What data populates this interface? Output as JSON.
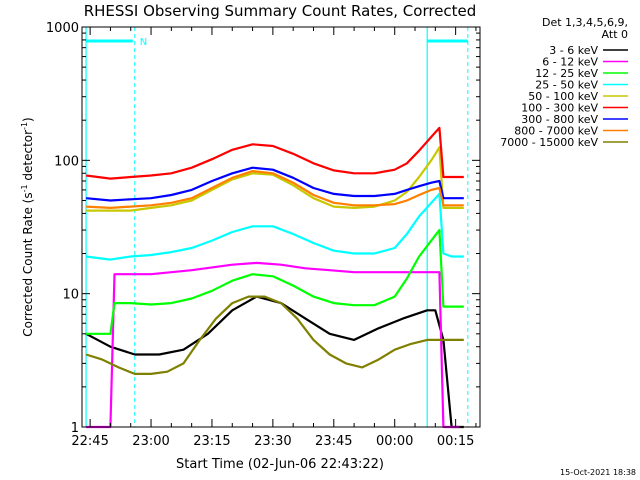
{
  "chart_data": {
    "type": "line",
    "title": "RHESSI Observing Summary Count Rates, Corrected",
    "xlabel": "Start Time (02-Jun-06 22:43:22)",
    "ylabel": "Corrected Count Rate (s",
    "ylabel_sup1": "-1",
    "ylabel_mid": " detector",
    "ylabel_sup2": "-1",
    "ylabel_end": ")",
    "y_scale": "log",
    "ylim": [
      1,
      1000
    ],
    "xlim": [
      "22:43:22",
      "00:21:00"
    ],
    "x_tick_labels": [
      "22:45",
      "23:00",
      "23:15",
      "23:30",
      "23:45",
      "00:00",
      "00:15"
    ],
    "y_tick_labels": [
      "1",
      "10",
      "100",
      "1000"
    ],
    "legend_header": [
      "Det 1,3,4,5,6,9,",
      "Att 0"
    ],
    "legend_placement": "right",
    "annotations": [
      {
        "text": "N",
        "x": "22:56"
      }
    ],
    "timestamp": "15-Oct-2021 18:38",
    "series": [
      {
        "name": "3 - 6 keV",
        "color": "#000000",
        "x": [
          "22:44",
          "22:50",
          "22:56",
          "23:02",
          "23:08",
          "23:14",
          "23:20",
          "23:26",
          "23:32",
          "23:38",
          "23:44",
          "23:50",
          "23:56",
          "00:02",
          "00:08",
          "00:10",
          "00:12",
          "00:14",
          "00:17"
        ],
        "y": [
          5,
          4,
          3.5,
          3.5,
          3.8,
          5,
          7.5,
          9.5,
          8.5,
          6.5,
          5,
          4.5,
          5.5,
          6.5,
          7.5,
          7.5,
          4.5,
          1,
          1
        ]
      },
      {
        "name": "6 - 12 keV",
        "color": "#ff00ff",
        "x": [
          "22:44",
          "22:50",
          "22:51",
          "23:00",
          "23:10",
          "23:20",
          "23:26",
          "23:32",
          "23:38",
          "23:44",
          "23:50",
          "23:56",
          "00:02",
          "00:08",
          "00:11",
          "00:12",
          "00:14",
          "00:16"
        ],
        "y": [
          1,
          1,
          14,
          14,
          15,
          16.5,
          17,
          16.5,
          15.5,
          15,
          14.5,
          14.5,
          14.5,
          14.5,
          14.5,
          1,
          1,
          1
        ]
      },
      {
        "name": "12 - 25 keV",
        "color": "#00ff00",
        "x": [
          "22:44",
          "22:50",
          "22:51",
          "22:55",
          "23:00",
          "23:05",
          "23:10",
          "23:15",
          "23:20",
          "23:25",
          "23:30",
          "23:35",
          "23:40",
          "23:45",
          "23:50",
          "23:55",
          "00:00",
          "00:03",
          "00:06",
          "00:09",
          "00:11",
          "00:12",
          "00:14",
          "00:17"
        ],
        "y": [
          5,
          5,
          8.5,
          8.5,
          8.3,
          8.5,
          9.2,
          10.5,
          12.5,
          14,
          13.5,
          11.5,
          9.5,
          8.5,
          8.2,
          8.2,
          9.5,
          13,
          19,
          25,
          30,
          8,
          8,
          8
        ]
      },
      {
        "name": "25 - 50 keV",
        "color": "#00ffff",
        "x": [
          "22:44",
          "22:50",
          "22:55",
          "23:00",
          "23:05",
          "23:10",
          "23:15",
          "23:20",
          "23:25",
          "23:30",
          "23:35",
          "23:40",
          "23:45",
          "23:50",
          "23:55",
          "00:00",
          "00:03",
          "00:06",
          "00:09",
          "00:11",
          "00:12",
          "00:14",
          "00:17"
        ],
        "y": [
          19,
          18,
          19,
          19.5,
          20.5,
          22,
          25,
          29,
          32,
          32,
          28,
          24,
          21,
          20,
          20,
          22,
          28,
          38,
          48,
          56,
          20,
          19,
          19
        ]
      },
      {
        "name": "50 - 100 keV",
        "color": "#c8c800",
        "x": [
          "22:44",
          "22:50",
          "22:55",
          "23:00",
          "23:05",
          "23:10",
          "23:15",
          "23:20",
          "23:25",
          "23:30",
          "23:35",
          "23:40",
          "23:45",
          "23:50",
          "23:55",
          "00:00",
          "00:03",
          "00:06",
          "00:09",
          "00:11",
          "00:12",
          "00:14",
          "00:17"
        ],
        "y": [
          42,
          42,
          42,
          44,
          46,
          50,
          60,
          72,
          80,
          78,
          65,
          52,
          45,
          44,
          45,
          50,
          58,
          75,
          100,
          125,
          44,
          44,
          44
        ]
      },
      {
        "name": "100 - 300 keV",
        "color": "#ff0000",
        "x": [
          "22:44",
          "22:50",
          "22:55",
          "23:00",
          "23:05",
          "23:10",
          "23:15",
          "23:20",
          "23:25",
          "23:30",
          "23:35",
          "23:40",
          "23:45",
          "23:50",
          "23:55",
          "00:00",
          "00:03",
          "00:06",
          "00:09",
          "00:11",
          "00:12",
          "00:14",
          "00:17"
        ],
        "y": [
          77,
          73,
          75,
          77,
          80,
          88,
          102,
          120,
          132,
          128,
          112,
          95,
          84,
          80,
          80,
          85,
          95,
          118,
          150,
          175,
          75,
          75,
          75
        ]
      },
      {
        "name": "300 - 800 keV",
        "color": "#0000ff",
        "x": [
          "22:44",
          "22:50",
          "22:55",
          "23:00",
          "23:05",
          "23:10",
          "23:15",
          "23:20",
          "23:25",
          "23:30",
          "23:35",
          "23:40",
          "23:45",
          "23:50",
          "23:55",
          "00:00",
          "00:03",
          "00:06",
          "00:09",
          "00:11",
          "00:12",
          "00:14",
          "00:17"
        ],
        "y": [
          52,
          50,
          51,
          52,
          55,
          60,
          70,
          80,
          88,
          85,
          74,
          62,
          56,
          54,
          54,
          56,
          60,
          64,
          68,
          70,
          52,
          52,
          52
        ]
      },
      {
        "name": "800 - 7000 keV",
        "color": "#ff8000",
        "x": [
          "22:44",
          "22:50",
          "22:55",
          "23:00",
          "23:05",
          "23:10",
          "23:15",
          "23:20",
          "23:25",
          "23:30",
          "23:35",
          "23:40",
          "23:45",
          "23:50",
          "23:55",
          "00:00",
          "00:03",
          "00:06",
          "00:09",
          "00:11",
          "00:12",
          "00:14",
          "00:17"
        ],
        "y": [
          45,
          44,
          45,
          46,
          48,
          52,
          62,
          74,
          83,
          80,
          68,
          55,
          48,
          46,
          46,
          47,
          50,
          55,
          60,
          62,
          46,
          46,
          46
        ]
      },
      {
        "name": "7000 - 15000 keV",
        "color": "#808000",
        "x": [
          "22:44",
          "22:48",
          "22:52",
          "22:56",
          "23:00",
          "23:04",
          "23:08",
          "23:12",
          "23:16",
          "23:20",
          "23:24",
          "23:28",
          "23:32",
          "23:36",
          "23:40",
          "23:44",
          "23:48",
          "23:52",
          "23:56",
          "00:00",
          "00:04",
          "00:08",
          "00:10",
          "00:12",
          "00:14",
          "00:17"
        ],
        "y": [
          3.5,
          3.2,
          2.8,
          2.5,
          2.5,
          2.6,
          3,
          4.5,
          6.5,
          8.5,
          9.5,
          9.5,
          8.5,
          6.5,
          4.5,
          3.5,
          3,
          2.8,
          3.2,
          3.8,
          4.2,
          4.5,
          4.5,
          4.5,
          4.5,
          4.5
        ]
      }
    ]
  }
}
